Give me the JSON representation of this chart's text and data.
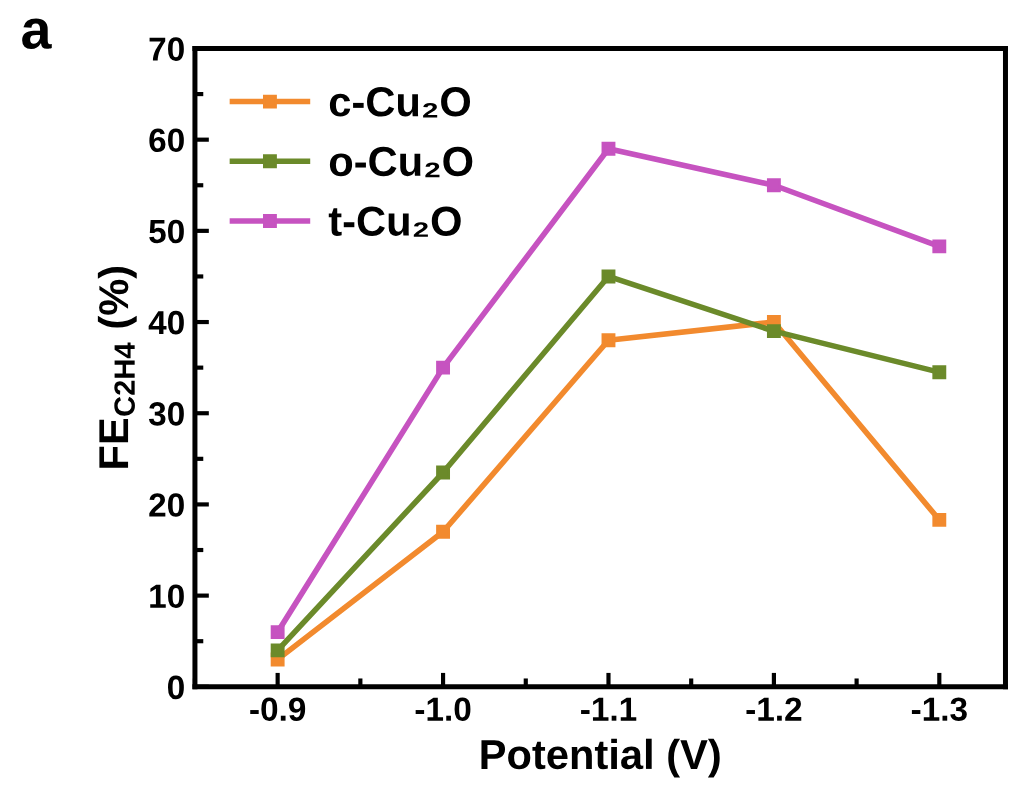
{
  "chart_data": {
    "type": "line",
    "title": "a",
    "xlabel": "Potential (V)",
    "ylabel": "FE$_{C2H4}$ (%)",
    "x": [
      -0.9,
      -1.0,
      -1.1,
      -1.2,
      -1.3
    ],
    "series": [
      {
        "name": "c-Cu₂O",
        "color": "#f28a2e",
        "values": [
          3,
          17,
          38,
          40,
          18.3
        ]
      },
      {
        "name": "o-Cu₂O",
        "color": "#6b8a2a",
        "values": [
          4,
          23.5,
          45,
          39,
          34.5
        ]
      },
      {
        "name": "t-Cu₂O",
        "color": "#c653c0",
        "values": [
          6,
          35,
          59,
          55,
          48.3
        ]
      }
    ],
    "xlim": [
      -0.85,
      -1.34
    ],
    "xticks": [
      -0.9,
      {
        "value": -1.0,
        "label": "-1.0"
      },
      -1.1,
      -1.2,
      -1.3
    ],
    "ylim": [
      0,
      70
    ],
    "yticks": [
      0,
      10,
      20,
      30,
      40,
      50,
      60,
      70
    ],
    "marker": "square",
    "line_style": "solid",
    "grid": false,
    "legend": "top left"
  }
}
